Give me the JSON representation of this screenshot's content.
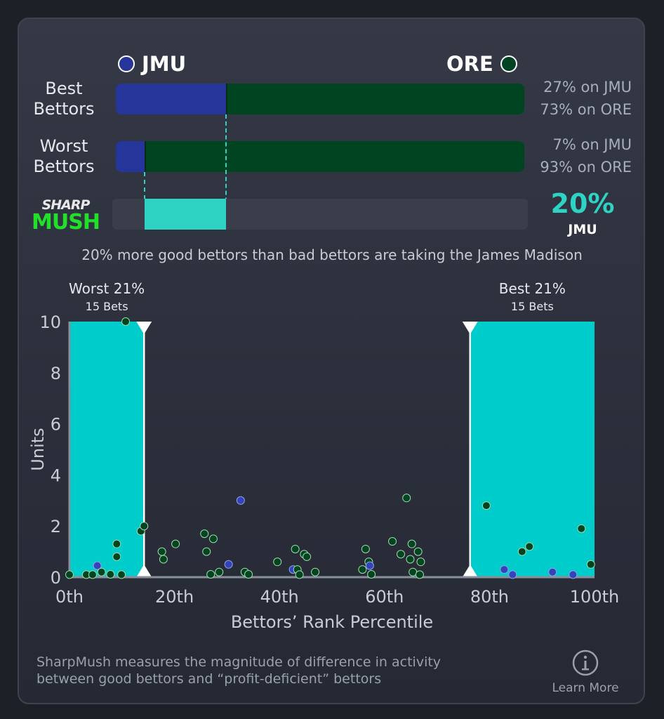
{
  "teams": {
    "left": {
      "name": "JMU",
      "color": "#26359a"
    },
    "right": {
      "name": "ORE",
      "color": "#014421"
    }
  },
  "rows": [
    {
      "label_line1": "Best",
      "label_line2": "Bettors",
      "left_pct": 27,
      "right_pct": 73,
      "left_text": "27% on JMU",
      "right_text": "73% on ORE"
    },
    {
      "label_line1": "Worst",
      "label_line2": "Bettors",
      "left_pct": 7,
      "right_pct": 93,
      "left_text": "7% on JMU",
      "right_text": "93% on ORE"
    }
  ],
  "sharpmush": {
    "logo_top": "SHARP",
    "logo_bottom": "MUSH",
    "value": "20%",
    "team": "JMU",
    "diff_pct": 20,
    "color": "#2ed3c4",
    "summary": "20% more good bettors than bad bettors are taking the James Madison"
  },
  "chart_data": {
    "type": "scatter",
    "xlabel": "Bettors’ Rank Percentile",
    "ylabel": "Units",
    "xlim": [
      0,
      100
    ],
    "ylim": [
      0,
      10
    ],
    "xticks": [
      "0th",
      "20th",
      "40th",
      "60th",
      "80th",
      "100th"
    ],
    "yticks": [
      "0",
      "2",
      "4",
      "6",
      "8",
      "10"
    ],
    "bands": [
      {
        "label": "Worst 21%",
        "sub": "15 Bets",
        "range": [
          0,
          14.2
        ],
        "color": "#00cccc"
      },
      {
        "label": "Best 21%",
        "sub": "15 Bets",
        "range": [
          76.3,
          100
        ],
        "color": "#00cccc"
      }
    ],
    "points": [
      {
        "x": 0,
        "y": 0.1,
        "team": "ORE"
      },
      {
        "x": 3.2,
        "y": 0.1,
        "team": "ORE"
      },
      {
        "x": 4.4,
        "y": 0.1,
        "team": "ORE"
      },
      {
        "x": 5.3,
        "y": 0.45,
        "team": "JMU"
      },
      {
        "x": 6.1,
        "y": 0.2,
        "team": "ORE"
      },
      {
        "x": 7.8,
        "y": 0,
        "team": "ORE"
      },
      {
        "x": 9,
        "y": 0.8,
        "team": "ORE"
      },
      {
        "x": 9,
        "y": 1.3,
        "team": "ORE"
      },
      {
        "x": 9.9,
        "y": 0.1,
        "team": "ORE"
      },
      {
        "x": 10.7,
        "y": 10,
        "team": "ORE"
      },
      {
        "x": 13.6,
        "y": 1.8,
        "team": "ORE"
      },
      {
        "x": 14.2,
        "y": 2.0,
        "team": "ORE"
      },
      {
        "x": 17.6,
        "y": 1.0,
        "team": "ORE"
      },
      {
        "x": 17.9,
        "y": 0.7,
        "team": "ORE"
      },
      {
        "x": 20.2,
        "y": 1.3,
        "team": "ORE"
      },
      {
        "x": 25.7,
        "y": 1.7,
        "team": "ORE"
      },
      {
        "x": 26.1,
        "y": 1.0,
        "team": "ORE"
      },
      {
        "x": 26.9,
        "y": 0,
        "team": "ORE"
      },
      {
        "x": 27.4,
        "y": 1.5,
        "team": "ORE"
      },
      {
        "x": 28.5,
        "y": 0.2,
        "team": "ORE"
      },
      {
        "x": 30.3,
        "y": 0.5,
        "team": "JMU"
      },
      {
        "x": 32.6,
        "y": 3.0,
        "team": "JMU"
      },
      {
        "x": 33.4,
        "y": 0.2,
        "team": "ORE"
      },
      {
        "x": 34.1,
        "y": 0,
        "team": "ORE"
      },
      {
        "x": 39.6,
        "y": 0.6,
        "team": "ORE"
      },
      {
        "x": 42.6,
        "y": 0.3,
        "team": "JMU"
      },
      {
        "x": 43,
        "y": 1.1,
        "team": "ORE"
      },
      {
        "x": 43.4,
        "y": 0.3,
        "team": "ORE"
      },
      {
        "x": 43.8,
        "y": 0.1,
        "team": "ORE"
      },
      {
        "x": 44.7,
        "y": 0.9,
        "team": "ORE"
      },
      {
        "x": 45.2,
        "y": 0.8,
        "team": "ORE"
      },
      {
        "x": 46.8,
        "y": 0.2,
        "team": "ORE"
      },
      {
        "x": 55.8,
        "y": 0.3,
        "team": "ORE"
      },
      {
        "x": 56.4,
        "y": 1.1,
        "team": "ORE"
      },
      {
        "x": 57,
        "y": 0.6,
        "team": "ORE"
      },
      {
        "x": 57.2,
        "y": 0.45,
        "team": "JMU"
      },
      {
        "x": 57.5,
        "y": 0,
        "team": "ORE"
      },
      {
        "x": 61.5,
        "y": 1.4,
        "team": "ORE"
      },
      {
        "x": 63.1,
        "y": 0.9,
        "team": "ORE"
      },
      {
        "x": 64.2,
        "y": 3.1,
        "team": "ORE"
      },
      {
        "x": 64.9,
        "y": 0.7,
        "team": "ORE"
      },
      {
        "x": 65.2,
        "y": 1.3,
        "team": "ORE"
      },
      {
        "x": 65.4,
        "y": 0.2,
        "team": "ORE"
      },
      {
        "x": 66.4,
        "y": 1.0,
        "team": "ORE"
      },
      {
        "x": 66.7,
        "y": 0.1,
        "team": "ORE"
      },
      {
        "x": 66.9,
        "y": 0.6,
        "team": "ORE"
      },
      {
        "x": 79.4,
        "y": 2.8,
        "team": "ORE"
      },
      {
        "x": 82.8,
        "y": 0.3,
        "team": "JMU"
      },
      {
        "x": 84.4,
        "y": 0.1,
        "team": "JMU"
      },
      {
        "x": 86.2,
        "y": 1.0,
        "team": "ORE"
      },
      {
        "x": 87.6,
        "y": 1.2,
        "team": "ORE"
      },
      {
        "x": 92,
        "y": 0.2,
        "team": "JMU"
      },
      {
        "x": 95.9,
        "y": 0.1,
        "team": "JMU"
      },
      {
        "x": 97.5,
        "y": 1.9,
        "team": "ORE"
      },
      {
        "x": 99.3,
        "y": 0.5,
        "team": "ORE"
      }
    ]
  },
  "footer": {
    "text_line1": "SharpMush measures the magnitude of difference in activity",
    "text_line2": "between good bettors and “profit-deficient” bettors",
    "learn_more": "Learn More",
    "icon": "info-icon"
  }
}
